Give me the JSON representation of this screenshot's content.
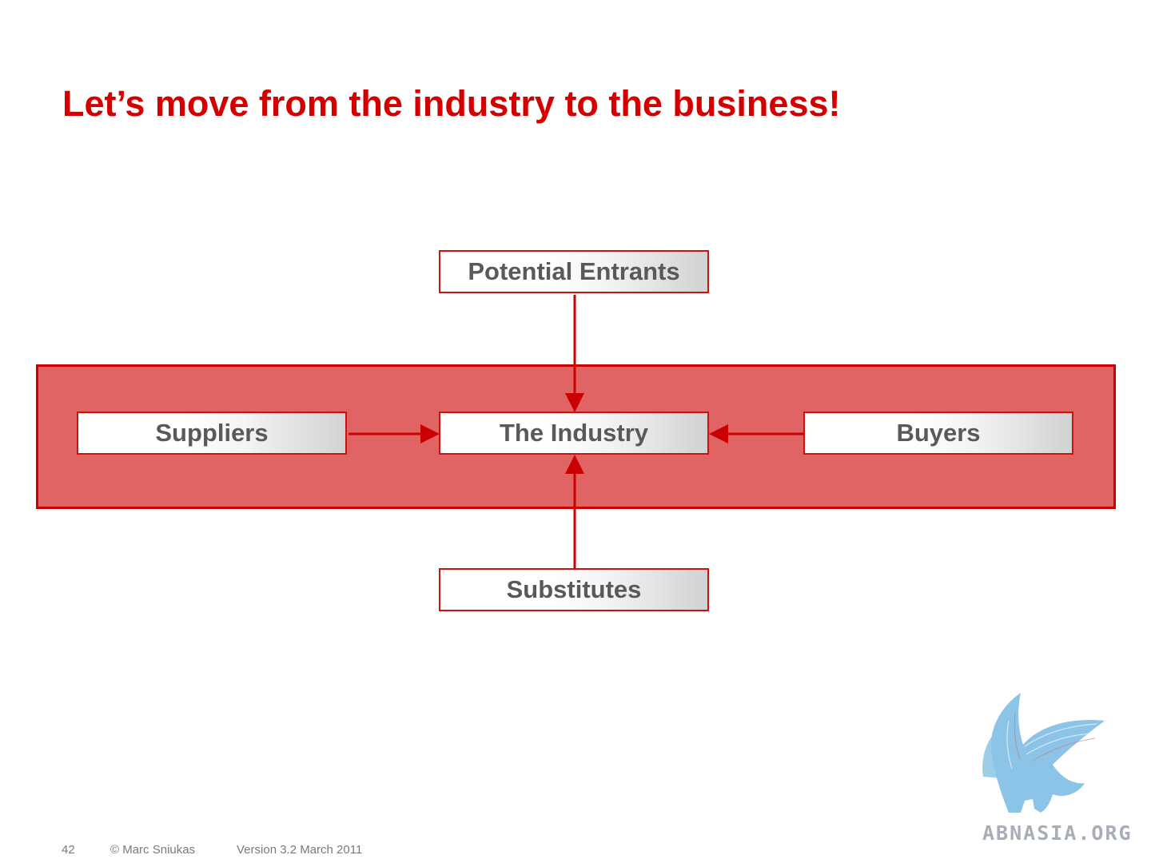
{
  "title": "Let’s move from the industry to the business!",
  "diagram": {
    "nodes": {
      "entrants": "Potential Entrants",
      "suppliers": "Suppliers",
      "industry": "The Industry",
      "buyers": "Buyers",
      "substitutes": "Substitutes"
    },
    "edges": [
      {
        "from": "Potential Entrants",
        "to": "The Industry"
      },
      {
        "from": "Suppliers",
        "to": "The Industry"
      },
      {
        "from": "Buyers",
        "to": "The Industry"
      },
      {
        "from": "Substitutes",
        "to": "The Industry"
      }
    ],
    "colors": {
      "accent": "#cc0000",
      "band": "#e06464",
      "node_text": "#595959"
    }
  },
  "logo": {
    "icon": "griffin-icon",
    "text": "ABNASIA.ORG",
    "color": "#8cc4e8"
  },
  "footer": {
    "page": "42",
    "copyright": "© Marc Sniukas",
    "version": "Version 3.2 March 2011"
  }
}
